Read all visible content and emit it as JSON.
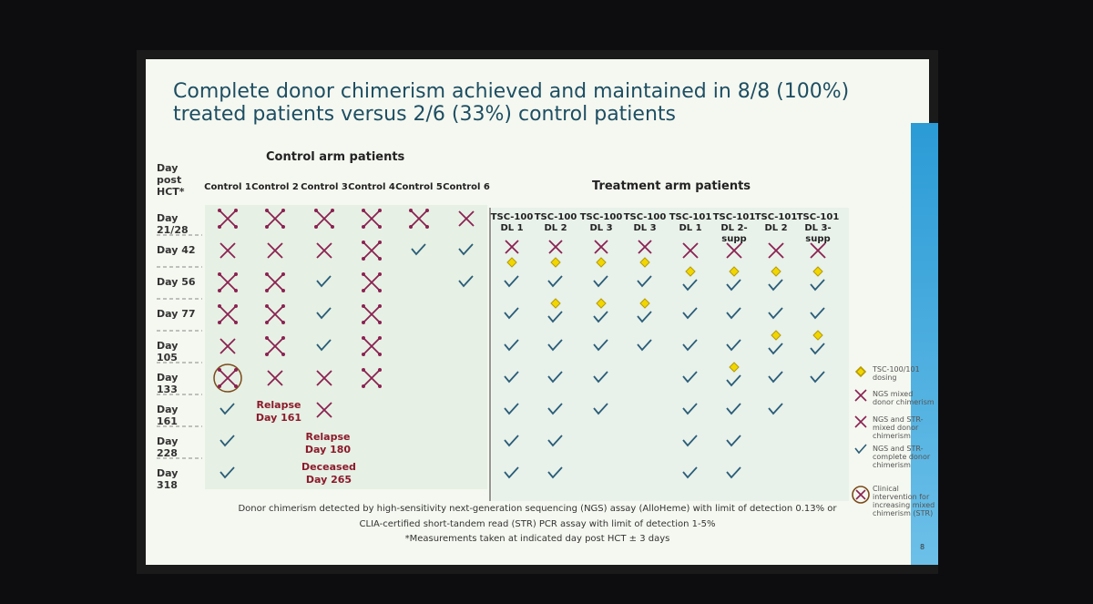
{
  "slide": {
    "title": "Complete donor chimerism achieved and maintained in 8/8 (100%) treated patients versus 2/6 (33%) control patients",
    "page_number": "8"
  },
  "table": {
    "row_header": "Day post HCT*",
    "group_headers": [
      "Control arm patients",
      "Treatment arm patients"
    ],
    "columns": [
      "Control 1",
      "Control 2",
      "Control 3",
      "Control 4",
      "Control 5",
      "Control 6",
      "TSC-100 DL 1",
      "TSC-100 DL 2",
      "TSC-100 DL 3",
      "TSC-100 DL 3",
      "TSC-101 DL 1",
      "TSC-101 DL 2-supp",
      "TSC-101 DL 2",
      "TSC-101 DL 3-supp"
    ],
    "rows": [
      "Day 21/28",
      "Day 42",
      "Day 56",
      "Day 77",
      "Day 105",
      "Day 133",
      "Day 161",
      "Day 228",
      "Day 318"
    ],
    "annotations": [
      "Relapse Day 161",
      "Relapse Day 180",
      "Deceased Day 265"
    ]
  },
  "legend": [
    "TSC-100/101 dosing",
    "NGS mixed donor chimerism",
    "NGS and STR-mixed donor chimerism",
    "NGS and STR-complete donor chimerism",
    "Clinical intervention for increasing mixed chimerism (STR)"
  ],
  "footnotes": [
    "Donor chimerism detected by high-sensitivity next-generation sequencing (NGS) assay (AlloHeme) with limit of detection 0.13% or",
    "CLIA-certified short-tandem read (STR) PCR assay with limit of detection 1-5%",
    "*Measurements taken at indicated day post HCT ± 3 days"
  ]
}
